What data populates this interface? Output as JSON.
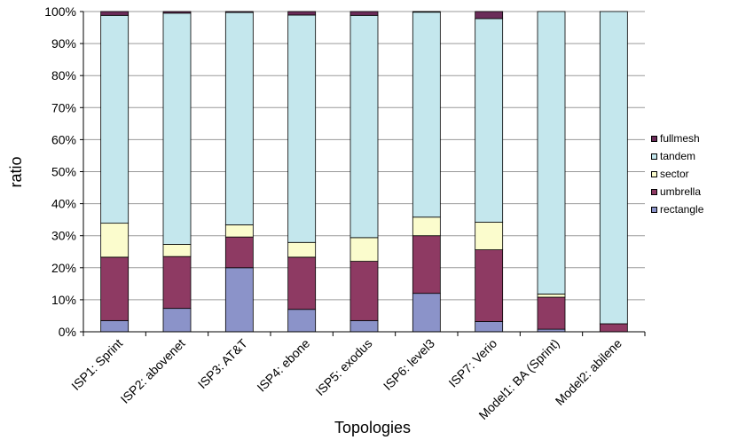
{
  "chart_data": {
    "type": "stacked-bar-percent",
    "title": "",
    "xlabel": "Topologies",
    "ylabel": "ratio",
    "ylim": [
      0,
      100
    ],
    "yticks": [
      "0%",
      "10%",
      "20%",
      "30%",
      "40%",
      "50%",
      "60%",
      "70%",
      "80%",
      "90%",
      "100%"
    ],
    "grid": true,
    "legend_position": "right",
    "categories": [
      "ISP1: Sprint",
      "ISP2: abovenet",
      "ISP3: AT&T",
      "ISP4: ebone",
      "ISP5: exodus",
      "ISP6: level3",
      "ISP7: Verio",
      "Model1: BA (Sprint)",
      "Model2: abilene"
    ],
    "series": [
      {
        "name": "rectangle",
        "color": "#8b93c9",
        "values": [
          3.5,
          7.3,
          20.0,
          7.0,
          3.5,
          12.0,
          3.2,
          0.8,
          0.0
        ]
      },
      {
        "name": "umbrella",
        "color": "#8e3a63",
        "values": [
          19.8,
          16.2,
          9.6,
          16.3,
          18.5,
          18.0,
          22.4,
          10.0,
          2.5
        ]
      },
      {
        "name": "sector",
        "color": "#fbfccd",
        "values": [
          10.6,
          3.8,
          3.8,
          4.6,
          7.4,
          5.8,
          8.6,
          1.0,
          0.0
        ]
      },
      {
        "name": "tandem",
        "color": "#c4e7ed",
        "values": [
          64.9,
          72.2,
          66.3,
          71.0,
          69.4,
          64.0,
          63.6,
          88.2,
          97.5
        ]
      },
      {
        "name": "fullmesh",
        "color": "#6b2c59",
        "values": [
          1.2,
          0.5,
          0.3,
          1.1,
          1.2,
          0.2,
          2.2,
          0.0,
          0.0
        ]
      }
    ]
  }
}
